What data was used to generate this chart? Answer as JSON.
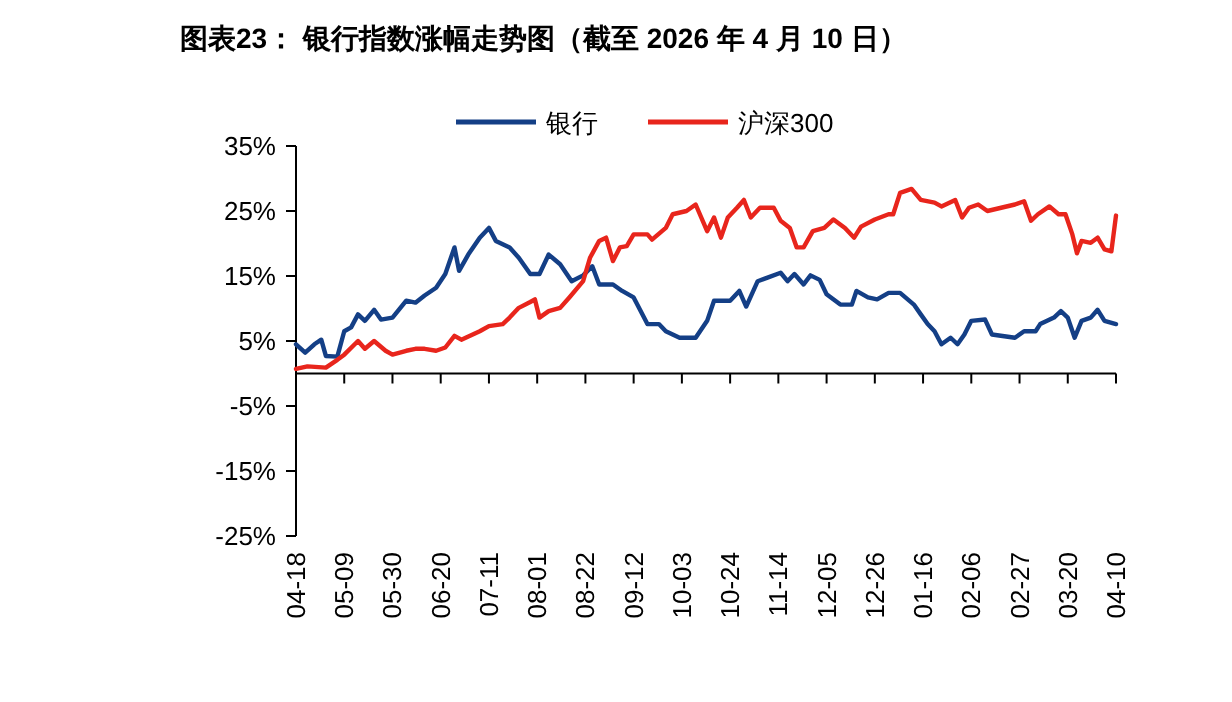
{
  "chart_data": {
    "type": "line",
    "title": "图表23：  银行指数涨幅走势图（截至 2026 年 4 月 10 日）",
    "xlim": [
      "2025-04-18",
      "2026-04-10"
    ],
    "xticks": [
      {
        "value": "2025-04-18",
        "label": "04-18"
      },
      {
        "value": "2025-05-09",
        "label": "05-09"
      },
      {
        "value": "2025-05-30",
        "label": "05-30"
      },
      {
        "value": "2025-06-20",
        "label": "06-20"
      },
      {
        "value": "2025-07-11",
        "label": "07-11"
      },
      {
        "value": "2025-08-01",
        "label": "08-01"
      },
      {
        "value": "2025-08-22",
        "label": "08-22"
      },
      {
        "value": "2025-09-12",
        "label": "09-12"
      },
      {
        "value": "2025-10-03",
        "label": "10-03"
      },
      {
        "value": "2025-10-24",
        "label": "10-24"
      },
      {
        "value": "2025-11-14",
        "label": "11-14"
      },
      {
        "value": "2025-12-05",
        "label": "12-05"
      },
      {
        "value": "2025-12-26",
        "label": "12-26"
      },
      {
        "value": "2026-01-16",
        "label": "01-16"
      },
      {
        "value": "2026-02-06",
        "label": "02-06"
      },
      {
        "value": "2026-02-27",
        "label": "02-27"
      },
      {
        "value": "2026-03-20",
        "label": "03-20"
      },
      {
        "value": "2026-04-10",
        "label": "04-10"
      }
    ],
    "ylim": [
      -25,
      35
    ],
    "yticks": [
      {
        "value": -25,
        "label": "-25%"
      },
      {
        "value": -15,
        "label": "-15%"
      },
      {
        "value": -5,
        "label": "-5%"
      },
      {
        "value": 5,
        "label": "5%"
      },
      {
        "value": 15,
        "label": "15%"
      },
      {
        "value": 25,
        "label": "25%"
      },
      {
        "value": 35,
        "label": "35%"
      }
    ],
    "grid": false,
    "legend": "top",
    "marker": "none",
    "line_style": "solid",
    "series": [
      {
        "name": "银行",
        "color": "#143f86",
        "x": [
          "2025-04-18",
          "2025-04-22",
          "2025-04-26",
          "2025-04-29",
          "2025-05-01",
          "2025-05-06",
          "2025-05-09",
          "2025-05-12",
          "2025-05-15",
          "2025-05-18",
          "2025-05-22",
          "2025-05-25",
          "2025-05-30",
          "2025-06-05",
          "2025-06-09",
          "2025-06-13",
          "2025-06-18",
          "2025-06-22",
          "2025-06-26",
          "2025-06-28",
          "2025-07-02",
          "2025-07-07",
          "2025-07-11",
          "2025-07-14",
          "2025-07-20",
          "2025-07-24",
          "2025-07-29",
          "2025-08-02",
          "2025-08-06",
          "2025-08-11",
          "2025-08-16",
          "2025-08-21",
          "2025-08-25",
          "2025-08-28",
          "2025-09-03",
          "2025-09-07",
          "2025-09-12",
          "2025-09-18",
          "2025-09-23",
          "2025-09-26",
          "2025-10-02",
          "2025-10-09",
          "2025-10-14",
          "2025-10-17",
          "2025-10-21",
          "2025-10-24",
          "2025-10-28",
          "2025-10-31",
          "2025-11-05",
          "2025-11-09",
          "2025-11-15",
          "2025-11-18",
          "2025-11-21",
          "2025-11-25",
          "2025-11-28",
          "2025-12-02",
          "2025-12-05",
          "2025-12-11",
          "2025-12-16",
          "2025-12-18",
          "2025-12-23",
          "2025-12-27",
          "2026-01-01",
          "2026-01-06",
          "2026-01-12",
          "2026-01-15",
          "2026-01-18",
          "2026-01-21",
          "2026-01-24",
          "2026-01-28",
          "2026-01-31",
          "2026-02-03",
          "2026-02-06",
          "2026-02-12",
          "2026-02-15",
          "2026-02-25",
          "2026-03-01",
          "2026-03-06",
          "2026-03-08",
          "2026-03-11",
          "2026-03-14",
          "2026-03-17",
          "2026-03-20",
          "2026-03-23",
          "2026-03-26",
          "2026-03-30",
          "2026-04-02",
          "2026-04-05",
          "2026-04-10"
        ],
        "values": [
          4.5,
          3.2,
          4.5,
          5.2,
          2.7,
          2.6,
          6.5,
          7.1,
          9.1,
          8.1,
          9.8,
          8.3,
          8.6,
          11.2,
          10.9,
          12.0,
          13.2,
          15.3,
          19.4,
          15.8,
          18.3,
          20.9,
          22.4,
          20.4,
          19.4,
          17.8,
          15.3,
          15.3,
          18.3,
          16.8,
          14.2,
          15.1,
          16.5,
          13.7,
          13.7,
          12.7,
          11.7,
          7.6,
          7.6,
          6.5,
          5.5,
          5.5,
          8.1,
          11.2,
          11.2,
          11.2,
          12.7,
          10.3,
          14.2,
          14.7,
          15.5,
          14.2,
          15.3,
          13.7,
          15.1,
          14.4,
          12.2,
          10.6,
          10.6,
          12.7,
          11.7,
          11.4,
          12.4,
          12.4,
          10.6,
          9.1,
          7.6,
          6.5,
          4.5,
          5.5,
          4.5,
          6.0,
          8.1,
          8.3,
          6.0,
          5.5,
          6.5,
          6.5,
          7.6,
          8.1,
          8.6,
          9.6,
          8.6,
          5.5,
          8.1,
          8.6,
          9.8,
          8.1,
          7.6
        ]
      },
      {
        "name": "沪深300",
        "color": "#e8251c",
        "x": [
          "2025-04-18",
          "2025-04-23",
          "2025-05-01",
          "2025-05-06",
          "2025-05-09",
          "2025-05-15",
          "2025-05-18",
          "2025-05-22",
          "2025-05-27",
          "2025-05-30",
          "2025-06-05",
          "2025-06-09",
          "2025-06-13",
          "2025-06-18",
          "2025-06-22",
          "2025-06-26",
          "2025-06-29",
          "2025-07-07",
          "2025-07-11",
          "2025-07-17",
          "2025-07-20",
          "2025-07-24",
          "2025-07-29",
          "2025-07-31",
          "2025-08-02",
          "2025-08-06",
          "2025-08-11",
          "2025-08-15",
          "2025-08-21",
          "2025-08-24",
          "2025-08-28",
          "2025-08-31",
          "2025-09-03",
          "2025-09-06",
          "2025-09-09",
          "2025-09-12",
          "2025-09-18",
          "2025-09-20",
          "2025-09-26",
          "2025-09-29",
          "2025-10-05",
          "2025-10-09",
          "2025-10-14",
          "2025-10-17",
          "2025-10-20",
          "2025-10-23",
          "2025-10-27",
          "2025-10-30",
          "2025-11-02",
          "2025-11-06",
          "2025-11-12",
          "2025-11-15",
          "2025-11-19",
          "2025-11-22",
          "2025-11-25",
          "2025-11-29",
          "2025-12-04",
          "2025-12-08",
          "2025-12-13",
          "2025-12-17",
          "2025-12-20",
          "2025-12-26",
          "2026-01-01",
          "2026-01-03",
          "2026-01-06",
          "2026-01-11",
          "2026-01-15",
          "2026-01-21",
          "2026-01-24",
          "2026-01-30",
          "2026-02-02",
          "2026-02-05",
          "2026-02-09",
          "2026-02-13",
          "2026-02-19",
          "2026-02-25",
          "2026-03-01",
          "2026-03-04",
          "2026-03-07",
          "2026-03-12",
          "2026-03-16",
          "2026-03-19",
          "2026-03-22",
          "2026-03-24",
          "2026-03-26",
          "2026-03-30",
          "2026-04-02",
          "2026-04-05",
          "2026-04-08",
          "2026-04-10"
        ],
        "values": [
          0.7,
          1.1,
          0.9,
          2.1,
          2.9,
          5.0,
          3.8,
          5.0,
          3.5,
          2.9,
          3.5,
          3.8,
          3.8,
          3.5,
          4.0,
          5.8,
          5.2,
          6.5,
          7.3,
          7.6,
          8.6,
          10.1,
          11.0,
          11.4,
          8.6,
          9.6,
          10.1,
          11.7,
          14.2,
          17.8,
          20.4,
          20.9,
          17.3,
          19.4,
          19.6,
          21.4,
          21.4,
          20.6,
          22.4,
          24.5,
          25.0,
          26.0,
          21.9,
          24.0,
          20.9,
          24.0,
          25.5,
          26.7,
          24.0,
          25.5,
          25.5,
          23.5,
          22.4,
          19.4,
          19.4,
          21.9,
          22.4,
          23.7,
          22.4,
          20.9,
          22.6,
          23.7,
          24.5,
          24.5,
          27.8,
          28.4,
          26.7,
          26.3,
          25.7,
          26.7,
          24.0,
          25.5,
          26.0,
          25.0,
          25.5,
          26.0,
          26.5,
          23.5,
          24.5,
          25.7,
          24.5,
          24.5,
          21.4,
          18.5,
          20.4,
          20.1,
          20.9,
          19.1,
          18.8,
          24.3
        ]
      }
    ]
  }
}
